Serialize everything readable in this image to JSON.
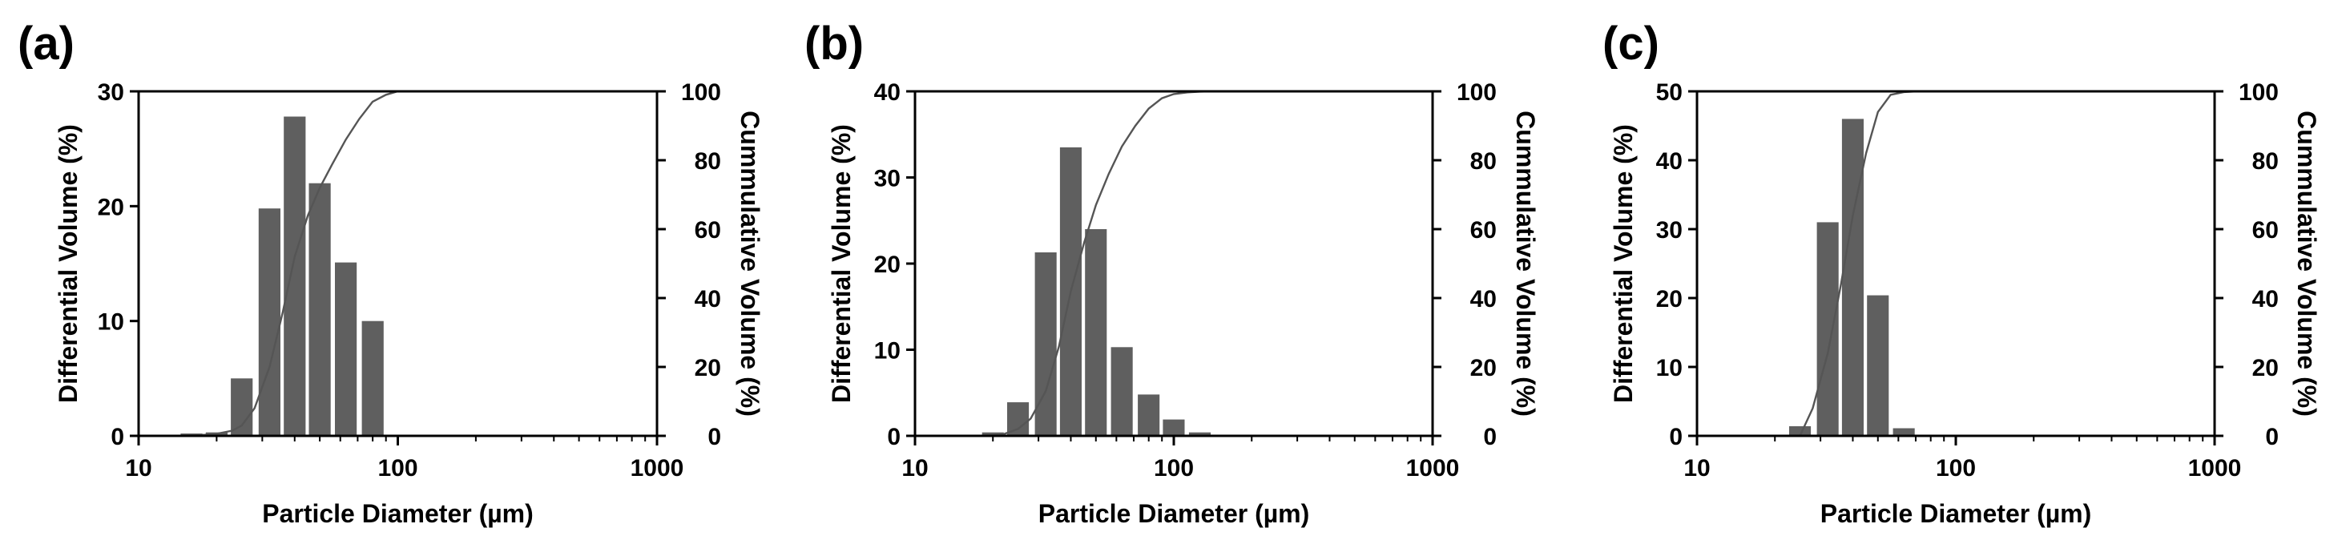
{
  "chart_data": [
    {
      "panel_label": "(a)",
      "type": "bar",
      "xlabel": "Particle Diameter  (µm)",
      "ylabel": "Differential Volume  (%)",
      "y2label": "Cummulative Volume (%)",
      "xscale": "log",
      "xlim": [
        10,
        1000
      ],
      "ylim": [
        0,
        30
      ],
      "y2lim": [
        0,
        100
      ],
      "x_ticks": [
        "10",
        "100",
        "1000"
      ],
      "y_ticks": [
        "0",
        "10",
        "20",
        "30"
      ],
      "y2_ticks": [
        "0",
        "20",
        "40",
        "60",
        "80",
        "100"
      ],
      "bar_color": "#5f5f5f",
      "series": [
        {
          "type": "bar",
          "axis": "left",
          "x": [
            16,
            20,
            25,
            32,
            40,
            50,
            63,
            80
          ],
          "values": [
            0.2,
            0.3,
            5.0,
            19.8,
            27.8,
            22.0,
            15.1,
            10.0
          ]
        },
        {
          "type": "line",
          "axis": "right",
          "x": [
            15,
            18,
            20,
            23,
            25,
            28,
            32,
            36,
            40,
            45,
            50,
            56,
            63,
            71,
            80,
            90,
            100
          ],
          "values": [
            0,
            0.3,
            0.6,
            1.5,
            3,
            8,
            20,
            36,
            52,
            64,
            72,
            79,
            86,
            92,
            97,
            99,
            100
          ]
        }
      ]
    },
    {
      "panel_label": "(b)",
      "type": "bar",
      "xlabel": "Particle Diameter  (µm)",
      "ylabel": "Differential Volume  (%)",
      "y2label": "Cummulative Volume (%)",
      "xscale": "log",
      "xlim": [
        10,
        1000
      ],
      "ylim": [
        0,
        40
      ],
      "y2lim": [
        0,
        100
      ],
      "x_ticks": [
        "10",
        "100",
        "1000"
      ],
      "y_ticks": [
        "0",
        "10",
        "20",
        "30",
        "40"
      ],
      "y2_ticks": [
        "0",
        "20",
        "40",
        "60",
        "80",
        "100"
      ],
      "bar_color": "#5f5f5f",
      "series": [
        {
          "type": "bar",
          "axis": "left",
          "x": [
            20,
            25,
            32,
            40,
            50,
            63,
            80,
            100,
            126
          ],
          "values": [
            0.4,
            3.9,
            21.3,
            33.5,
            24.0,
            10.3,
            4.8,
            1.9,
            0.4
          ]
        },
        {
          "type": "line",
          "axis": "right",
          "x": [
            19,
            22,
            25,
            28,
            32,
            36,
            40,
            45,
            50,
            56,
            63,
            71,
            80,
            90,
            100,
            113,
            126,
            140
          ],
          "values": [
            0,
            0.5,
            2,
            5,
            13,
            26,
            42,
            56,
            67,
            76,
            84,
            90,
            95,
            98,
            99.2,
            99.7,
            99.9,
            100
          ]
        }
      ]
    },
    {
      "panel_label": "(c)",
      "type": "bar",
      "xlabel": "Particle Diameter  (µm)",
      "ylabel": "Differential Volume  (%)",
      "y2label": "Cummulative Volume (%)",
      "xscale": "log",
      "xlim": [
        10,
        1000
      ],
      "ylim": [
        0,
        50
      ],
      "y2lim": [
        0,
        100
      ],
      "x_ticks": [
        "10",
        "100",
        "1000"
      ],
      "y_ticks": [
        "0",
        "10",
        "20",
        "30",
        "40",
        "50"
      ],
      "y2_ticks": [
        "0",
        "20",
        "40",
        "60",
        "80",
        "100"
      ],
      "bar_color": "#5f5f5f",
      "series": [
        {
          "type": "bar",
          "axis": "left",
          "x": [
            25,
            32,
            40,
            50,
            63
          ],
          "values": [
            1.4,
            31.0,
            46.0,
            20.4,
            1.1
          ]
        },
        {
          "type": "line",
          "axis": "right",
          "x": [
            25,
            28,
            32,
            36,
            40,
            45,
            50,
            56,
            63,
            71
          ],
          "values": [
            0,
            8,
            24,
            44,
            64,
            82,
            94,
            99,
            99.8,
            100
          ]
        }
      ]
    }
  ]
}
